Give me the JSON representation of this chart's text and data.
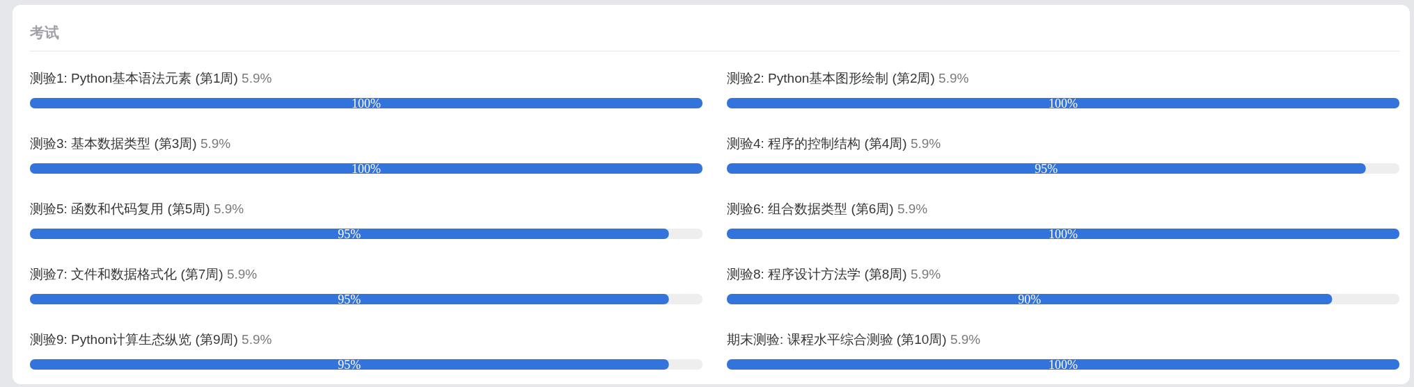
{
  "chart_data": [
    {
      "type": "bar",
      "orientation": "horizontal",
      "title": "考试",
      "categories": [
        "测验1: Python基本语法元素 (第1周) 5.9%",
        "测验3: 基本数据类型 (第3周) 5.9%",
        "测验5: 函数和代码复用 (第5周) 5.9%",
        "测验7: 文件和数据格式化 (第7周) 5.9%",
        "测验9: Python计算生态纵览 (第9周) 5.9%"
      ],
      "values": [
        100,
        100,
        95,
        95,
        95
      ],
      "value_labels": [
        "100%",
        "100%",
        "95%",
        "95%",
        "95%"
      ],
      "color": "#3273dc",
      "xlim": [
        0,
        100
      ],
      "tick_labels": "y"
    },
    {
      "type": "bar",
      "orientation": "horizontal",
      "categories": [
        "测验2: Python基本图形绘制 (第2周) 5.9%",
        "测验4: 程序的控制结构 (第4周) 5.9%",
        "测验6: 组合数据类型 (第6周) 5.9%",
        "测验8: 程序设计方法学 (第8周) 5.9%",
        "期末测验: 课程水平综合测验 (第10周) 5.9%"
      ],
      "values": [
        100,
        95,
        100,
        90,
        100
      ],
      "value_labels": [
        "100%",
        "95%",
        "100%",
        "90%",
        "100%"
      ],
      "color": "#3273dc",
      "xlim": [
        0,
        100
      ],
      "tick_labels": "y"
    }
  ]
}
